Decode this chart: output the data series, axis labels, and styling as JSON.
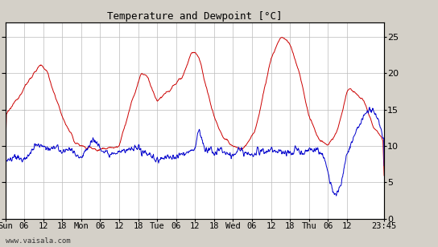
{
  "title": "Temperature and Dewpoint [°C]",
  "watermark": "www.vaisala.com",
  "bg_color": "#d4d0c8",
  "plot_bg_color": "#ffffff",
  "temp_color": "#cc0000",
  "dew_color": "#0000cc",
  "ylim": [
    0,
    27
  ],
  "yticks": [
    0,
    5,
    10,
    15,
    20,
    25
  ],
  "xtick_positions": [
    0,
    6,
    12,
    18,
    24,
    30,
    36,
    42,
    48,
    54,
    60,
    66,
    72,
    78,
    84,
    90,
    96,
    102,
    108,
    119.75
  ],
  "x_tick_labels": [
    "Sun",
    "06",
    "12",
    "18",
    "Mon",
    "06",
    "12",
    "18",
    "Tue",
    "06",
    "12",
    "18",
    "Wed",
    "06",
    "12",
    "18",
    "Thu",
    "06",
    "12",
    "23:45"
  ],
  "total_hours": 119.75,
  "n_points": 960,
  "grid_color": "#bbbbbb",
  "linewidth": 0.7
}
